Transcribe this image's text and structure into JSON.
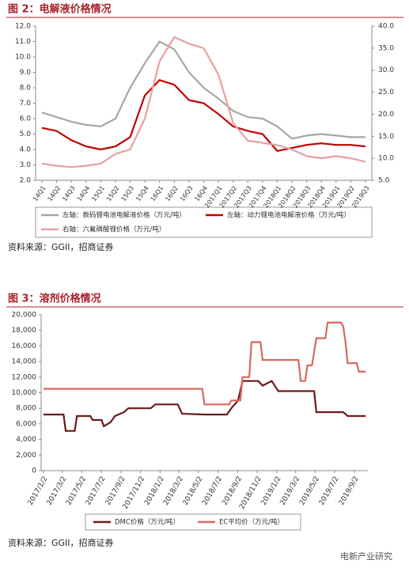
{
  "chart_data": [
    {
      "type": "line",
      "title": "图 2：电解液价格情况",
      "categories": [
        "14Q1",
        "14Q2",
        "14Q3",
        "14Q4",
        "15Q1",
        "15Q2",
        "15Q3",
        "15Q4",
        "16Q1",
        "16Q2",
        "16Q3",
        "16Q4",
        "2017Q1",
        "2017Q2",
        "2017Q3",
        "2017Q4",
        "2018Q1",
        "2018Q2",
        "2018Q3",
        "2018Q4",
        "2019Q1",
        "2019Q2",
        "2019Q3"
      ],
      "series": [
        {
          "name": "左轴：数码锂电池电解液价格（万元/吨）",
          "color": "#a6a6a6",
          "values": [
            6.4,
            6.1,
            5.8,
            5.6,
            5.5,
            6.0,
            8.0,
            9.6,
            11.0,
            10.5,
            9.0,
            8.0,
            7.3,
            6.5,
            6.1,
            6.0,
            5.5,
            4.7,
            4.9,
            5.0,
            4.9,
            4.8,
            4.8
          ]
        },
        {
          "name": "左轴：动力锂电池电解液价格（万元/吨）",
          "color": "#c00000",
          "values": [
            5.4,
            5.2,
            4.6,
            4.2,
            4.0,
            4.2,
            4.8,
            7.5,
            8.5,
            8.2,
            7.2,
            7.0,
            6.3,
            5.5,
            5.2,
            5.0,
            3.9,
            4.1,
            4.3,
            4.4,
            4.3,
            4.3,
            4.2
          ]
        },
        {
          "name": "右轴：六氟磷酸锂价格（万元/吨）",
          "color": "#e6a0a0",
          "axis": "y2",
          "values": [
            8.8,
            8.3,
            8.0,
            8.3,
            8.8,
            11.0,
            12.0,
            19.0,
            32.0,
            37.5,
            36.0,
            35.0,
            29.0,
            18.0,
            14.0,
            13.5,
            13.0,
            12.0,
            10.5,
            10.0,
            10.5,
            10.0,
            9.2
          ]
        }
      ],
      "ylim": [
        2,
        12
      ],
      "yticks": [
        {
          "value": 2,
          "label": "2.0"
        },
        {
          "value": 3,
          "label": "3.0"
        },
        {
          "value": 4,
          "label": "4.0"
        },
        {
          "value": 5,
          "label": "5.0"
        },
        {
          "value": 6,
          "label": "6.0"
        },
        {
          "value": 7,
          "label": "7.0"
        },
        {
          "value": 8,
          "label": "8.0"
        },
        {
          "value": 9,
          "label": "9.0"
        },
        {
          "value": 10,
          "label": "10.0"
        },
        {
          "value": 11,
          "label": "11.0"
        },
        {
          "value": 12,
          "label": "12.0"
        }
      ],
      "y2lim": [
        5,
        40
      ],
      "y2ticks": [
        {
          "value": 5,
          "label": "5.0"
        },
        {
          "value": 10,
          "label": "10.0"
        },
        {
          "value": 15,
          "label": "15.0"
        },
        {
          "value": 20,
          "label": "20.0"
        },
        {
          "value": 25,
          "label": "25.0"
        },
        {
          "value": 30,
          "label": "30.0"
        },
        {
          "value": 35,
          "label": "35.0"
        },
        {
          "value": 40,
          "label": "40.0"
        }
      ],
      "source": "资料来源：GGII，招商证券"
    },
    {
      "type": "line",
      "title": "图 3：溶剂价格情况",
      "series": [
        {
          "name": "DMC价格（万元/吨）",
          "color": "#6b1a1a",
          "x": [
            "2017/1/2",
            "2017/3/6",
            "2017/3/13",
            "2017/4/10",
            "2017/4/17",
            "2017/5/29",
            "2017/6/5",
            "2017/7/3",
            "2017/7/10",
            "2017/7/31",
            "2017/8/14",
            "2017/9/11",
            "2017/9/25",
            "2017/12/4",
            "2017/12/18",
            "2018/2/26",
            "2018/3/12",
            "2018/5/21",
            "2018/7/30",
            "2018/8/13",
            "2018/9/3",
            "2018/9/17",
            "2018/11/5",
            "2018/11/19",
            "2018/12/17",
            "2019/1/7",
            "2019/4/29",
            "2019/5/6",
            "2019/7/29",
            "2019/8/12",
            "2019/10/7"
          ],
          "values": [
            7200,
            7200,
            5100,
            5100,
            7000,
            7000,
            6500,
            6500,
            5700,
            6200,
            7000,
            7500,
            8000,
            8000,
            8500,
            8500,
            7300,
            7200,
            7200,
            8000,
            9000,
            11500,
            11500,
            10900,
            11500,
            10200,
            10200,
            7500,
            7500,
            7000,
            7000
          ]
        },
        {
          "name": "EC平均价（万元/吨）",
          "color": "#d9685f",
          "x": [
            "2017/1/2",
            "2018/5/14",
            "2018/5/21",
            "2018/8/6",
            "2018/8/13",
            "2018/9/10",
            "2018/9/17",
            "2018/10/8",
            "2018/10/15",
            "2018/11/12",
            "2018/11/19",
            "2019/3/11",
            "2019/3/18",
            "2019/4/1",
            "2019/4/8",
            "2019/4/22",
            "2019/5/6",
            "2019/6/3",
            "2019/6/10",
            "2019/7/22",
            "2019/7/29",
            "2019/8/5",
            "2019/8/12",
            "2019/9/9",
            "2019/9/16",
            "2019/10/7"
          ],
          "values": [
            10500,
            10500,
            8500,
            8500,
            9000,
            9000,
            12000,
            12000,
            16500,
            16500,
            14200,
            14200,
            11500,
            11500,
            13500,
            13500,
            17000,
            17000,
            19000,
            19000,
            18500,
            16500,
            13800,
            13800,
            12700,
            12700
          ]
        }
      ],
      "xlim": [
        "2016/12/26",
        "2019/10/14"
      ],
      "xticks": [
        "2017/1/2",
        "2017/3/2",
        "2017/5/2",
        "2017/7/2",
        "2017/9/2",
        "2017/11/2",
        "2018/1/2",
        "2018/3/2",
        "2018/5/2",
        "2018/7/2",
        "2018/9/2",
        "2018/11/2",
        "2019/1/2",
        "2019/3/2",
        "2019/5/2",
        "2019/7/2",
        "2019/9/2"
      ],
      "ylim": [
        0,
        20000
      ],
      "yticks": [
        0,
        {
          "value": 2000,
          "label": "2,000"
        },
        {
          "value": 4000,
          "label": "4,000"
        },
        {
          "value": 6000,
          "label": "6,000"
        },
        {
          "value": 8000,
          "label": "8,000"
        },
        {
          "value": 10000,
          "label": "10,000"
        },
        {
          "value": 12000,
          "label": "12,000"
        },
        {
          "value": 14000,
          "label": "14,000"
        },
        {
          "value": 16000,
          "label": "16,000"
        },
        {
          "value": 18000,
          "label": "18,000"
        },
        {
          "value": 20000,
          "label": "20,000"
        }
      ],
      "source": "资料来源：GGII，招商证券"
    }
  ],
  "watermark": "电新产业研究"
}
